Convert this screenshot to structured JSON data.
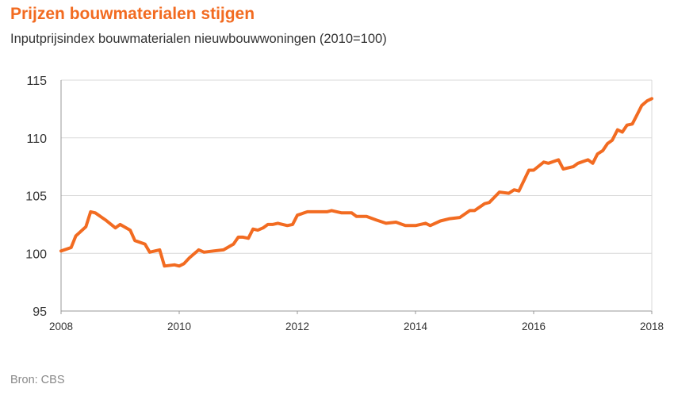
{
  "title": "Prijzen bouwmaterialen stijgen",
  "subtitle": "Inputprijsindex bouwmaterialen nieuwbouwwoningen (2010=100)",
  "source": "Bron: CBS",
  "colors": {
    "line": "#f26b21",
    "title": "#f26b21",
    "grid": "#d9d9d9",
    "axis": "#999999"
  },
  "chart_data": {
    "type": "line",
    "title": "Prijzen bouwmaterialen stijgen",
    "subtitle": "Inputprijsindex bouwmaterialen nieuwbouwwoningen (2010=100)",
    "xlim": [
      2008,
      2018
    ],
    "ylim": [
      95,
      115
    ],
    "grid": true,
    "legend": "none",
    "x_ticks": [
      {
        "value": 2008,
        "label": "2008"
      },
      {
        "value": 2010,
        "label": "2010"
      },
      {
        "value": 2012,
        "label": "2012"
      },
      {
        "value": 2014,
        "label": "2014"
      },
      {
        "value": 2016,
        "label": "2016"
      },
      {
        "value": 2018,
        "label": "2018"
      }
    ],
    "y_ticks": [
      {
        "value": 95,
        "label": "95"
      },
      {
        "value": 100,
        "label": "100"
      },
      {
        "value": 105,
        "label": "105"
      },
      {
        "value": 110,
        "label": "110"
      },
      {
        "value": 115,
        "label": "115"
      }
    ],
    "series": [
      {
        "x": [
          2008.0,
          2008.17,
          2008.25,
          2008.42,
          2008.5,
          2008.58,
          2008.75,
          2008.92,
          2009.0,
          2009.17,
          2009.25,
          2009.42,
          2009.5,
          2009.67,
          2009.75,
          2009.92,
          2010.0,
          2010.08,
          2010.17,
          2010.33,
          2010.42,
          2010.58,
          2010.75,
          2010.92,
          2011.0,
          2011.08,
          2011.17,
          2011.25,
          2011.33,
          2011.42,
          2011.5,
          2011.58,
          2011.67,
          2011.83,
          2011.92,
          2012.0,
          2012.17,
          2012.33,
          2012.5,
          2012.58,
          2012.75,
          2012.92,
          2013.0,
          2013.17,
          2013.33,
          2013.5,
          2013.67,
          2013.83,
          2013.92,
          2014.0,
          2014.17,
          2014.25,
          2014.42,
          2014.58,
          2014.75,
          2014.92,
          2015.0,
          2015.17,
          2015.25,
          2015.42,
          2015.58,
          2015.67,
          2015.75,
          2015.92,
          2016.0,
          2016.17,
          2016.25,
          2016.42,
          2016.5,
          2016.67,
          2016.75,
          2016.92,
          2017.0,
          2017.08,
          2017.17,
          2017.25,
          2017.33,
          2017.42,
          2017.5,
          2017.58,
          2017.67,
          2017.75,
          2017.83,
          2017.92,
          2018.0
        ],
        "y": [
          100.2,
          100.5,
          101.5,
          102.3,
          103.6,
          103.5,
          102.9,
          102.2,
          102.5,
          102.0,
          101.1,
          100.8,
          100.1,
          100.3,
          98.9,
          99.0,
          98.9,
          99.1,
          99.6,
          100.3,
          100.1,
          100.2,
          100.3,
          100.8,
          101.4,
          101.4,
          101.3,
          102.1,
          102.0,
          102.2,
          102.5,
          102.5,
          102.6,
          102.4,
          102.5,
          103.3,
          103.6,
          103.6,
          103.6,
          103.7,
          103.5,
          103.5,
          103.2,
          103.2,
          102.9,
          102.6,
          102.7,
          102.4,
          102.4,
          102.4,
          102.6,
          102.4,
          102.8,
          103.0,
          103.1,
          103.7,
          103.7,
          104.3,
          104.4,
          105.3,
          105.2,
          105.5,
          105.4,
          107.2,
          107.2,
          107.9,
          107.8,
          108.1,
          107.3,
          107.5,
          107.8,
          108.1,
          107.8,
          108.6,
          108.9,
          109.5,
          109.8,
          110.7,
          110.5,
          111.1,
          111.2,
          112.0,
          112.8,
          113.2,
          113.4
        ]
      }
    ]
  }
}
